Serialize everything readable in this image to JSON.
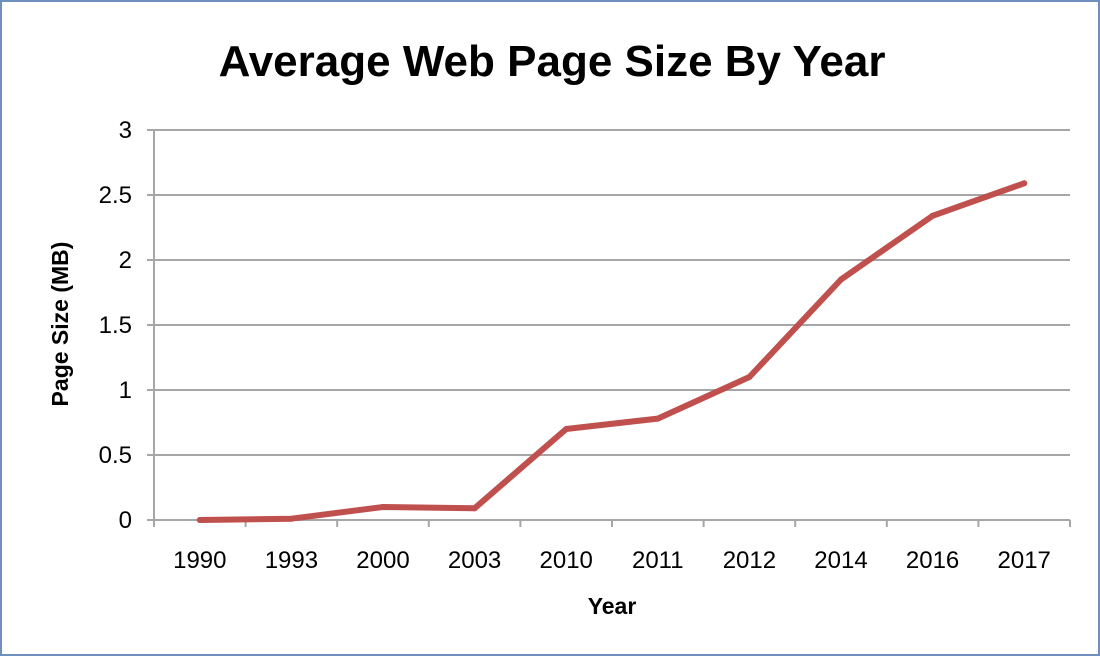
{
  "chart_data": {
    "type": "line",
    "title": "Average Web Page Size By Year",
    "xlabel": "Year",
    "ylabel": "Page Size (MB)",
    "categories": [
      "1990",
      "1993",
      "2000",
      "2003",
      "2010",
      "2011",
      "2012",
      "2014",
      "2016",
      "2017"
    ],
    "series": [
      {
        "values": [
          0.0,
          0.01,
          0.1,
          0.09,
          0.7,
          0.78,
          1.1,
          1.85,
          2.34,
          2.59
        ]
      }
    ],
    "ylim": [
      0,
      3
    ],
    "yticks": [
      "0",
      "0.5",
      "1",
      "1.5",
      "2",
      "2.5",
      "3"
    ],
    "grid": true,
    "line_color": "#c0504d",
    "grid_color": "#a6a6a6"
  }
}
